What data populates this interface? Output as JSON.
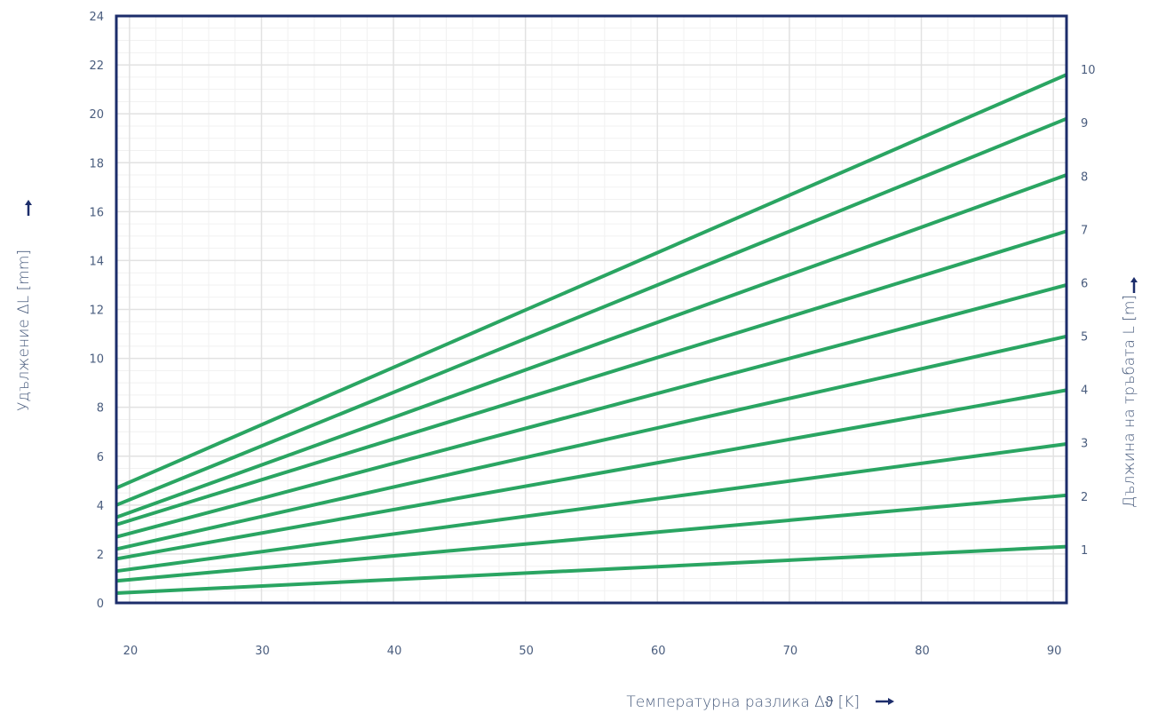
{
  "chart_data": {
    "type": "line",
    "title": "",
    "xlabel": "Температурна разлика Δϑ [K]",
    "ylabel": "Удължение ΔL [mm]",
    "y2label": "Дължина на тръбата L [m]",
    "xlim": [
      19,
      91
    ],
    "ylim": [
      0,
      24
    ],
    "y2lim": [
      0,
      11
    ],
    "x_ticks": [
      "20",
      "30",
      "40",
      "50",
      "60",
      "70",
      "80",
      "90"
    ],
    "y_ticks": [
      "0",
      "2",
      "4",
      "6",
      "8",
      "10",
      "12",
      "14",
      "16",
      "18",
      "20",
      "22",
      "24"
    ],
    "y2_ticks": [
      "1",
      "2",
      "3",
      "4",
      "5",
      "6",
      "7",
      "8",
      "9",
      "10"
    ],
    "grid": true,
    "line_color": "#2aa562",
    "frame_color": "#1c2d6b",
    "series": [
      {
        "name": "1",
        "x": [
          19,
          91
        ],
        "y": [
          0.4,
          2.3
        ]
      },
      {
        "name": "2",
        "x": [
          19,
          91
        ],
        "y": [
          0.9,
          4.4
        ]
      },
      {
        "name": "3",
        "x": [
          19,
          91
        ],
        "y": [
          1.3,
          6.5
        ]
      },
      {
        "name": "4",
        "x": [
          19,
          91
        ],
        "y": [
          1.8,
          8.7
        ]
      },
      {
        "name": "5",
        "x": [
          19,
          91
        ],
        "y": [
          2.2,
          10.9
        ]
      },
      {
        "name": "6",
        "x": [
          19,
          91
        ],
        "y": [
          2.7,
          13.0
        ]
      },
      {
        "name": "7",
        "x": [
          19,
          91
        ],
        "y": [
          3.2,
          15.2
        ]
      },
      {
        "name": "8",
        "x": [
          19,
          91
        ],
        "y": [
          3.5,
          17.5
        ]
      },
      {
        "name": "9",
        "x": [
          19,
          91
        ],
        "y": [
          4.0,
          19.8
        ]
      },
      {
        "name": "10",
        "x": [
          19,
          91
        ],
        "y": [
          4.7,
          21.6
        ]
      }
    ]
  }
}
